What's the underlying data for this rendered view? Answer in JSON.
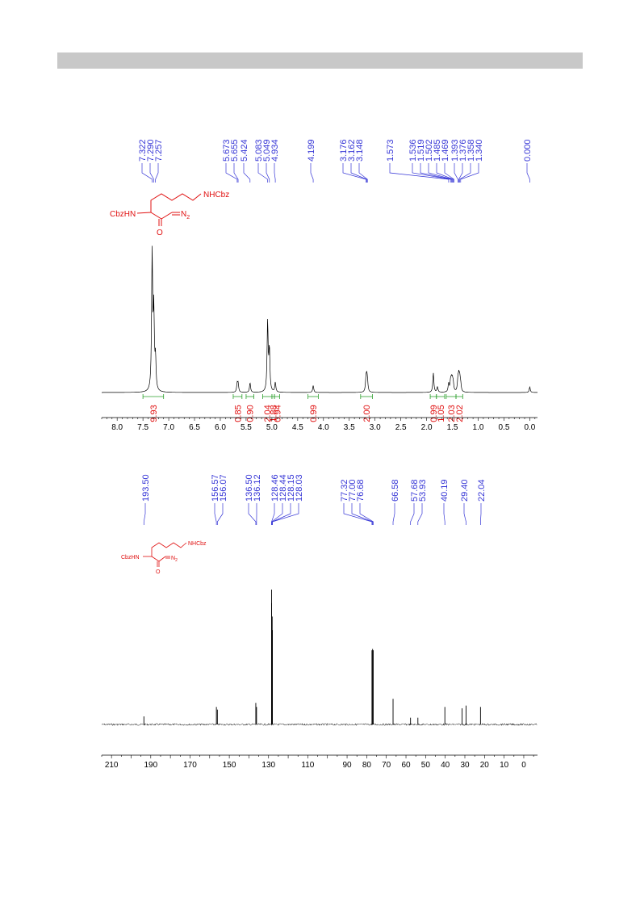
{
  "header": {
    "bar_color": "#c8c8c8"
  },
  "colors": {
    "peak_label": "#3535d6",
    "integral": "#e01010",
    "structure": "#e01010",
    "trace": "#000000",
    "integral_bracket": "#2ca02c"
  },
  "structures": {
    "h1": {
      "left_group": "CbzHN",
      "right_group": "NHCbz",
      "carbonyl": "O",
      "diazo": "N",
      "diazo_sub": "2"
    },
    "c13": {
      "left_group": "CbzHN",
      "right_group": "NHCbz",
      "carbonyl": "O",
      "diazo": "N",
      "diazo_sub": "2"
    }
  },
  "chart_data": [
    {
      "type": "line",
      "nucleus": "1H",
      "xlim": [
        8.3,
        -0.15
      ],
      "reversed_x": true,
      "x_ticks": [
        "8.0",
        "7.5",
        "7.0",
        "6.5",
        "6.0",
        "5.5",
        "5.0",
        "4.5",
        "4.0",
        "3.5",
        "3.0",
        "2.5",
        "2.0",
        "1.5",
        "1.0",
        "0.5",
        "0.0"
      ],
      "peak_labels": [
        "7.322",
        "7.290",
        "7.257",
        "5.673",
        "5.655",
        "5.424",
        "5.083",
        "5.049",
        "4.934",
        "4.199",
        "3.176",
        "3.162",
        "3.148",
        "1.573",
        "1.536",
        "1.519",
        "1.502",
        "1.485",
        "1.469",
        "1.393",
        "1.376",
        "1.358",
        "1.340",
        "0.000"
      ],
      "peaks": [
        {
          "shift": 7.322,
          "height": 1.0
        },
        {
          "shift": 7.29,
          "height": 0.55
        },
        {
          "shift": 7.257,
          "height": 0.22
        },
        {
          "shift": 5.673,
          "height": 0.06
        },
        {
          "shift": 5.655,
          "height": 0.06
        },
        {
          "shift": 5.424,
          "height": 0.07
        },
        {
          "shift": 5.083,
          "height": 0.5
        },
        {
          "shift": 5.049,
          "height": 0.3
        },
        {
          "shift": 4.934,
          "height": 0.07
        },
        {
          "shift": 4.199,
          "height": 0.05
        },
        {
          "shift": 3.176,
          "height": 0.08
        },
        {
          "shift": 3.162,
          "height": 0.09
        },
        {
          "shift": 3.148,
          "height": 0.07
        },
        {
          "shift": 1.87,
          "height": 0.14
        },
        {
          "shift": 1.79,
          "height": 0.04
        },
        {
          "shift": 1.573,
          "height": 0.06
        },
        {
          "shift": 1.536,
          "height": 0.07
        },
        {
          "shift": 1.519,
          "height": 0.07
        },
        {
          "shift": 1.502,
          "height": 0.07
        },
        {
          "shift": 1.485,
          "height": 0.06
        },
        {
          "shift": 1.393,
          "height": 0.08
        },
        {
          "shift": 1.376,
          "height": 0.1
        },
        {
          "shift": 1.358,
          "height": 0.09
        },
        {
          "shift": 1.34,
          "height": 0.05
        },
        {
          "shift": 0.0,
          "height": 0.04
        }
      ],
      "integrals": [
        {
          "from": 7.5,
          "to": 7.1,
          "value": "9.93"
        },
        {
          "from": 5.75,
          "to": 5.58,
          "value": "0.85"
        },
        {
          "from": 5.5,
          "to": 5.35,
          "value": "0.90"
        },
        {
          "from": 5.18,
          "to": 5.0,
          "value": "2.04"
        },
        {
          "from": 5.0,
          "to": 4.95,
          "value": "1.88"
        },
        {
          "from": 4.95,
          "to": 4.85,
          "value": "0.94"
        },
        {
          "from": 4.3,
          "to": 4.1,
          "value": "0.99"
        },
        {
          "from": 3.28,
          "to": 3.05,
          "value": "2.00"
        },
        {
          "from": 1.93,
          "to": 1.81,
          "value": "0.99"
        },
        {
          "from": 1.81,
          "to": 1.65,
          "value": "1.05"
        },
        {
          "from": 1.62,
          "to": 1.43,
          "value": "2.03"
        },
        {
          "from": 1.43,
          "to": 1.3,
          "value": "2.02"
        }
      ]
    },
    {
      "type": "line",
      "nucleus": "13C",
      "xlim": [
        215,
        -7
      ],
      "reversed_x": true,
      "x_ticks": [
        "210",
        "190",
        "170",
        "150",
        "130",
        "110",
        "90",
        "80",
        "70",
        "60",
        "50",
        "40",
        "30",
        "20",
        "10",
        "0"
      ],
      "peak_labels": [
        "193.50",
        "156.57",
        "156.07",
        "136.50",
        "136.12",
        "128.46",
        "128.44",
        "128.15",
        "128.03",
        "77.32",
        "77.00",
        "76.68",
        "66.58",
        "57.68",
        "53.93",
        "40.19",
        "29.40",
        "22.04"
      ],
      "peaks": [
        {
          "shift": 193.5,
          "height": 0.06
        },
        {
          "shift": 156.57,
          "height": 0.13
        },
        {
          "shift": 156.07,
          "height": 0.11
        },
        {
          "shift": 136.5,
          "height": 0.16
        },
        {
          "shift": 136.12,
          "height": 0.13
        },
        {
          "shift": 128.46,
          "height": 1.0
        },
        {
          "shift": 128.44,
          "height": 0.9
        },
        {
          "shift": 128.15,
          "height": 0.8
        },
        {
          "shift": 128.03,
          "height": 0.7
        },
        {
          "shift": 77.32,
          "height": 0.55
        },
        {
          "shift": 77.0,
          "height": 0.56
        },
        {
          "shift": 76.68,
          "height": 0.55
        },
        {
          "shift": 66.58,
          "height": 0.19
        },
        {
          "shift": 57.68,
          "height": 0.05
        },
        {
          "shift": 53.93,
          "height": 0.05
        },
        {
          "shift": 40.19,
          "height": 0.13
        },
        {
          "shift": 31.4,
          "height": 0.12
        },
        {
          "shift": 29.4,
          "height": 0.14
        },
        {
          "shift": 22.04,
          "height": 0.13
        }
      ]
    }
  ]
}
